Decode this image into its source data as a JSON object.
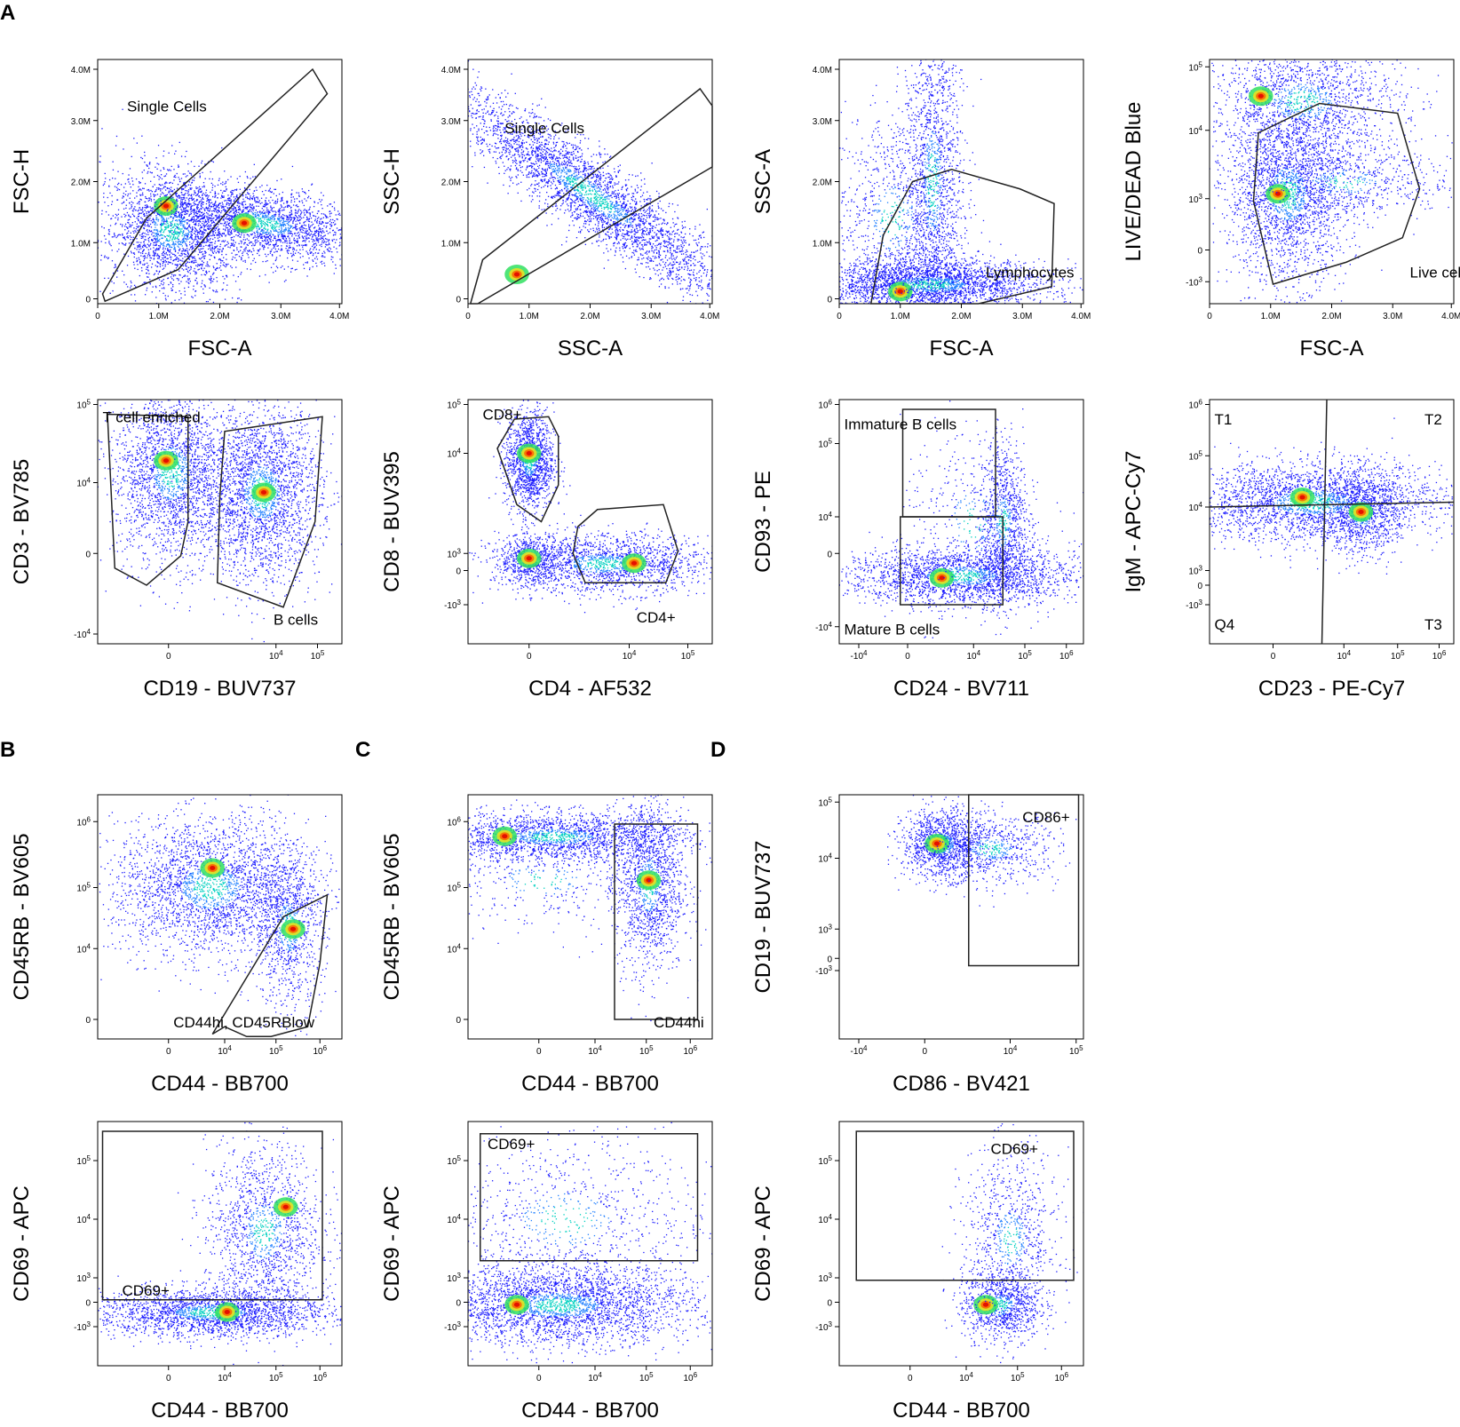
{
  "figure_panels": [
    "A",
    "B",
    "C",
    "D"
  ],
  "chart_data": [
    {
      "id": "a1",
      "panel": "A",
      "type": "scatter",
      "xlabel": "FSC-A",
      "ylabel": "FSC-H",
      "xscale": "linear",
      "yscale": "linear",
      "xticks": [
        "0",
        "1.0M",
        "2.0M",
        "3.0M",
        "4.0M"
      ],
      "yticks": [
        "0",
        "1.0M",
        "2.0M",
        "3.0M",
        "4.0M"
      ],
      "gates": [
        "Single Cells"
      ]
    },
    {
      "id": "a2",
      "panel": "A",
      "type": "scatter",
      "xlabel": "SSC-A",
      "ylabel": "SSC-H",
      "xscale": "linear",
      "yscale": "linear",
      "xticks": [
        "0",
        "1.0M",
        "2.0M",
        "3.0M",
        "4.0M"
      ],
      "yticks": [
        "0",
        "1.0M",
        "2.0M",
        "3.0M",
        "4.0M"
      ],
      "gates": [
        "Single Cells"
      ]
    },
    {
      "id": "a3",
      "panel": "A",
      "type": "scatter",
      "xlabel": "FSC-A",
      "ylabel": "SSC-A",
      "xscale": "linear",
      "yscale": "linear",
      "xticks": [
        "0",
        "1.0M",
        "2.0M",
        "3.0M",
        "4.0M"
      ],
      "yticks": [
        "0",
        "1.0M",
        "2.0M",
        "3.0M",
        "4.0M"
      ],
      "gates": [
        "Lymphocytes"
      ]
    },
    {
      "id": "a4",
      "panel": "A",
      "type": "scatter",
      "xlabel": "FSC-A",
      "ylabel": "LIVE/DEAD Blue",
      "xscale": "linear",
      "yscale": "biexponential",
      "xticks": [
        "0",
        "1.0M",
        "2.0M",
        "3.0M",
        "4.0M"
      ],
      "yticks": [
        "-10^3",
        "0",
        "10^3",
        "10^4",
        "10^5"
      ],
      "gates": [
        "Live cells"
      ]
    },
    {
      "id": "a5",
      "panel": "A",
      "type": "scatter",
      "xlabel": "CD19 - BUV737",
      "ylabel": "CD3 - BV785",
      "xscale": "biexponential",
      "yscale": "biexponential",
      "xticks": [
        "0",
        "10^4",
        "10^5"
      ],
      "yticks": [
        "-10^4",
        "0",
        "10^4",
        "10^5"
      ],
      "gates": [
        "T cell enriched",
        "B cells"
      ]
    },
    {
      "id": "a6",
      "panel": "A",
      "type": "scatter",
      "xlabel": "CD4 - AF532",
      "ylabel": "CD8 - BUV395",
      "xscale": "biexponential",
      "yscale": "biexponential",
      "xticks": [
        "0",
        "10^4",
        "10^5"
      ],
      "yticks": [
        "-10^3",
        "0",
        "10^3",
        "10^4",
        "10^5"
      ],
      "gates": [
        "CD8+",
        "CD4+"
      ]
    },
    {
      "id": "a7",
      "panel": "A",
      "type": "scatter",
      "xlabel": "CD24 - BV711",
      "ylabel": "CD93 - PE",
      "xscale": "biexponential",
      "yscale": "biexponential",
      "xticks": [
        "-10^4",
        "0",
        "10^4",
        "10^5",
        "10^6"
      ],
      "yticks": [
        "-10^4",
        "0",
        "10^4",
        "10^5",
        "10^6"
      ],
      "gates": [
        "Immature B cells",
        "Mature B cells"
      ]
    },
    {
      "id": "a8",
      "panel": "A",
      "type": "scatter",
      "xlabel": "CD23 - PE-Cy7",
      "ylabel": "IgM - APC-Cy7",
      "xscale": "biexponential",
      "yscale": "biexponential",
      "xticks": [
        "0",
        "10^4",
        "10^5",
        "10^6"
      ],
      "yticks": [
        "-10^3",
        "0",
        "10^3",
        "10^4",
        "10^5",
        "10^6"
      ],
      "gates": [
        "T1",
        "T2",
        "Q4",
        "T3"
      ]
    },
    {
      "id": "b1",
      "panel": "B",
      "type": "scatter",
      "xlabel": "CD44 - BB700",
      "ylabel": "CD45RB - BV605",
      "xscale": "biexponential",
      "yscale": "biexponential",
      "xticks": [
        "0",
        "10^4",
        "10^5",
        "10^6"
      ],
      "yticks": [
        "0",
        "10^4",
        "10^5",
        "10^6"
      ],
      "gates": [
        "CD44hi, CD45RBlow"
      ]
    },
    {
      "id": "c1",
      "panel": "C",
      "type": "scatter",
      "xlabel": "CD44 - BB700",
      "ylabel": "CD45RB - BV605",
      "xscale": "biexponential",
      "yscale": "biexponential",
      "xticks": [
        "0",
        "10^4",
        "10^5",
        "10^6"
      ],
      "yticks": [
        "0",
        "10^4",
        "10^5",
        "10^6"
      ],
      "gates": [
        "CD44hi"
      ]
    },
    {
      "id": "d1",
      "panel": "D",
      "type": "scatter",
      "xlabel": "CD86 - BV421",
      "ylabel": "CD19 - BUV737",
      "xscale": "biexponential",
      "yscale": "biexponential",
      "xticks": [
        "-10^4",
        "0",
        "10^4",
        "10^5"
      ],
      "yticks": [
        "-10^3",
        "0",
        "10^3",
        "10^4",
        "10^5"
      ],
      "gates": [
        "CD86+"
      ]
    },
    {
      "id": "b2",
      "panel": "B",
      "type": "scatter",
      "xlabel": "CD44 - BB700",
      "ylabel": "CD69 - APC",
      "xscale": "biexponential",
      "yscale": "biexponential",
      "xticks": [
        "0",
        "10^4",
        "10^5",
        "10^6"
      ],
      "yticks": [
        "-10^3",
        "0",
        "10^3",
        "10^4",
        "10^5"
      ],
      "gates": [
        "CD69+"
      ]
    },
    {
      "id": "c2",
      "panel": "C",
      "type": "scatter",
      "xlabel": "CD44 - BB700",
      "ylabel": "CD69 - APC",
      "xscale": "biexponential",
      "yscale": "biexponential",
      "xticks": [
        "0",
        "10^4",
        "10^5",
        "10^6"
      ],
      "yticks": [
        "-10^3",
        "0",
        "10^3",
        "10^4",
        "10^5"
      ],
      "gates": [
        "CD69+"
      ]
    },
    {
      "id": "d2",
      "panel": "D",
      "type": "scatter",
      "xlabel": "CD44 - BB700",
      "ylabel": "CD69 - APC",
      "xscale": "biexponential",
      "yscale": "biexponential",
      "xticks": [
        "0",
        "10^4",
        "10^5",
        "10^6"
      ],
      "yticks": [
        "-10^3",
        "0",
        "10^3",
        "10^4",
        "10^5"
      ],
      "gates": [
        "CD69+"
      ]
    }
  ]
}
